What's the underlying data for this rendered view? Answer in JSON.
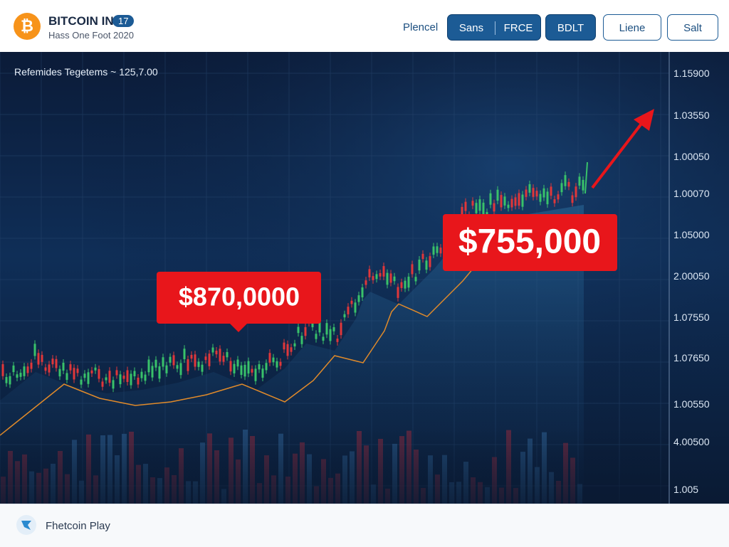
{
  "header": {
    "title": "BITCOIN IN.",
    "badge": "17",
    "subtitle": "Hass One Foot 2020",
    "nav_link": "Plencel",
    "buttons": [
      "Sans",
      "FRCE",
      "BDLT",
      "Liene",
      "Salt"
    ]
  },
  "chart": {
    "info": "Refemides Tegetems ~ 125,7.00",
    "callouts": [
      "$870,0000",
      "$755,000"
    ],
    "axis_labels": [
      "1.15900",
      "1.03550",
      "1.00050",
      "1.00070",
      "1.05000",
      "2.00050",
      "1.07550",
      "1.07650",
      "1.00550",
      "4.00500",
      "1.005"
    ]
  },
  "footer": {
    "label": "Fhetcoin Play"
  }
}
